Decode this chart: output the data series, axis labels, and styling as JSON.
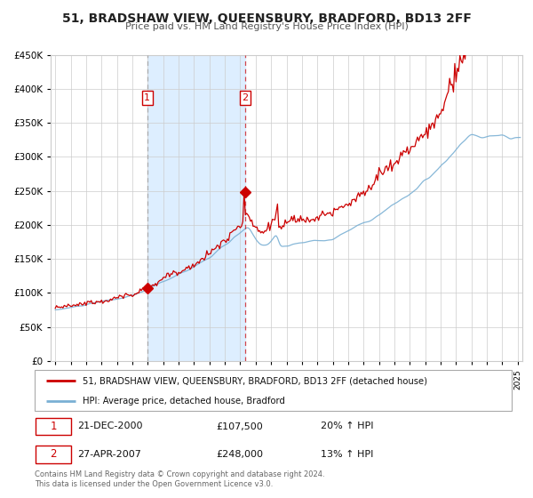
{
  "title": "51, BRADSHAW VIEW, QUEENSBURY, BRADFORD, BD13 2FF",
  "subtitle": "Price paid vs. HM Land Registry's House Price Index (HPI)",
  "red_label": "51, BRADSHAW VIEW, QUEENSBURY, BRADFORD, BD13 2FF (detached house)",
  "blue_label": "HPI: Average price, detached house, Bradford",
  "annotation1": {
    "num": "1",
    "date": "21-DEC-2000",
    "price": "£107,500",
    "hpi": "20% ↑ HPI",
    "x_year": 2000.97
  },
  "annotation2": {
    "num": "2",
    "date": "27-APR-2007",
    "price": "£248,000",
    "hpi": "13% ↑ HPI",
    "x_year": 2007.32
  },
  "footer": "Contains HM Land Registry data © Crown copyright and database right 2024.\nThis data is licensed under the Open Government Licence v3.0.",
  "red_color": "#cc0000",
  "blue_color": "#7ab0d4",
  "shaded_region_color": "#ddeeff",
  "grid_color": "#cccccc",
  "background_color": "#ffffff",
  "ylim": [
    0,
    450000
  ],
  "yticks": [
    0,
    50000,
    100000,
    150000,
    200000,
    250000,
    300000,
    350000,
    400000,
    450000
  ],
  "xlim_start": 1994.7,
  "xlim_end": 2025.3,
  "marker_size": 6,
  "point1": {
    "x_year": 2000.97,
    "y": 107500
  },
  "point2": {
    "x_year": 2007.32,
    "y": 248000
  }
}
